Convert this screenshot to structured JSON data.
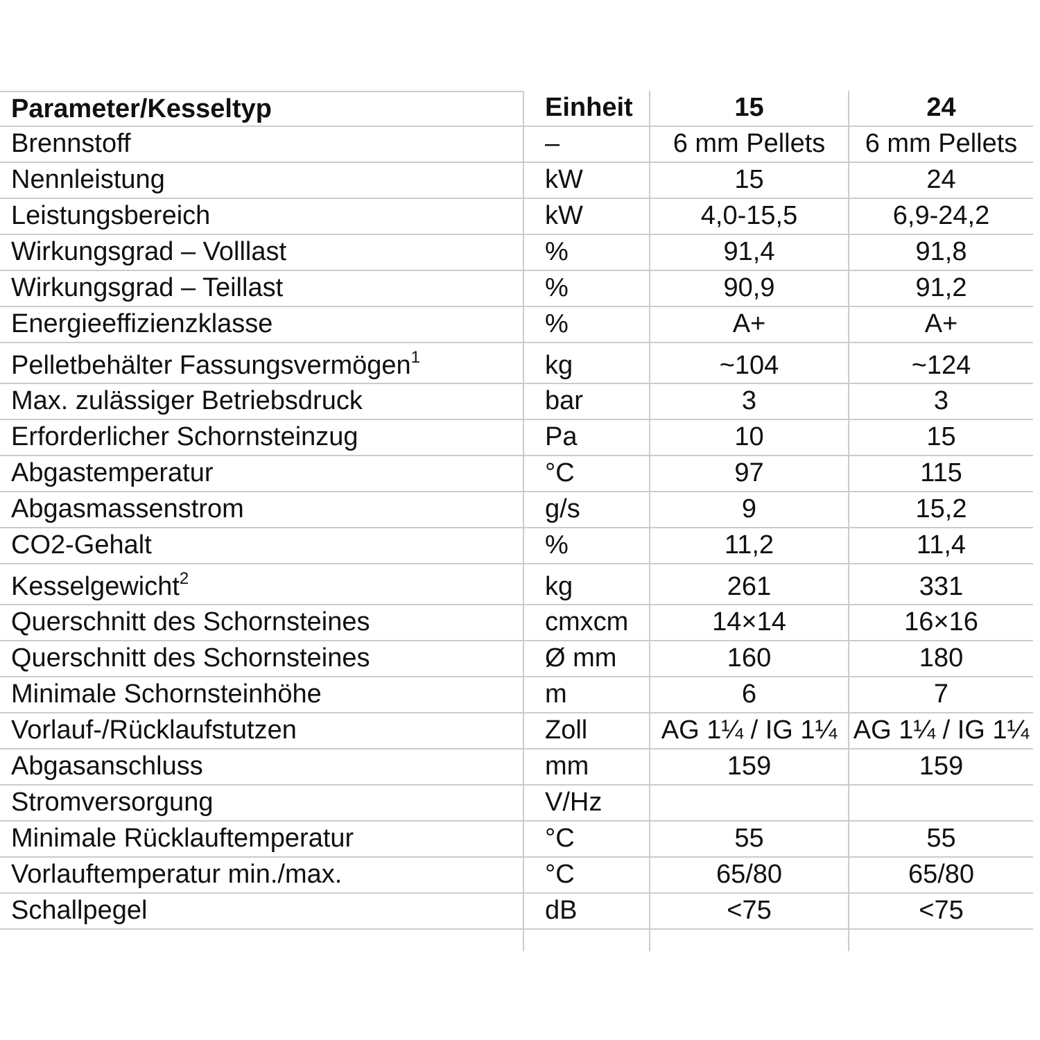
{
  "colors": {
    "grid": "#cbcbcb",
    "text": "#101010",
    "background": "#ffffff"
  },
  "table": {
    "header": {
      "parameter": "Parameter/Kesseltyp",
      "unit": "Einheit",
      "col15": "15",
      "col24": "24"
    },
    "rows": [
      {
        "parameter": "Brennstoff",
        "sup": "",
        "unit": "–",
        "v15": "6 mm Pellets",
        "v24": "6 mm Pellets"
      },
      {
        "parameter": "Nennleistung",
        "sup": "",
        "unit": "kW",
        "v15": "15",
        "v24": "24"
      },
      {
        "parameter": "Leistungsbereich",
        "sup": "",
        "unit": "kW",
        "v15": "4,0-15,5",
        "v24": "6,9-24,2"
      },
      {
        "parameter": "Wirkungsgrad – Volllast",
        "sup": "",
        "unit": "%",
        "v15": "91,4",
        "v24": "91,8"
      },
      {
        "parameter": "Wirkungsgrad – Teillast",
        "sup": "",
        "unit": "%",
        "v15": "90,9",
        "v24": "91,2"
      },
      {
        "parameter": "Energieeffizienzklasse",
        "sup": "",
        "unit": "%",
        "v15": "A+",
        "v24": "A+"
      },
      {
        "parameter": "Pelletbehälter Fassungsvermögen",
        "sup": "1",
        "unit": "kg",
        "v15": "~104",
        "v24": "~124"
      },
      {
        "parameter": "Max. zulässiger Betriebsdruck",
        "sup": "",
        "unit": "bar",
        "v15": "3",
        "v24": "3"
      },
      {
        "parameter": "Erforderlicher Schornsteinzug",
        "sup": "",
        "unit": "Pa",
        "v15": "10",
        "v24": "15"
      },
      {
        "parameter": "Abgastemperatur",
        "sup": "",
        "unit": "°C",
        "v15": "97",
        "v24": "115"
      },
      {
        "parameter": "Abgasmassenstrom",
        "sup": "",
        "unit": "g/s",
        "v15": "9",
        "v24": "15,2"
      },
      {
        "parameter": "CO2-Gehalt",
        "sup": "",
        "unit": "%",
        "v15": "11,2",
        "v24": "11,4"
      },
      {
        "parameter": "Kesselgewicht",
        "sup": "2",
        "unit": "kg",
        "v15": "261",
        "v24": "331"
      },
      {
        "parameter": "Querschnitt des Schornsteines",
        "sup": "",
        "unit": "cmxcm",
        "v15": "14×14",
        "v24": "16×16"
      },
      {
        "parameter": "Querschnitt des Schornsteines",
        "sup": "",
        "unit": "Ø mm",
        "v15": "160",
        "v24": "180"
      },
      {
        "parameter": "Minimale Schornsteinhöhe",
        "sup": "",
        "unit": "m",
        "v15": "6",
        "v24": "7"
      },
      {
        "parameter": "Vorlauf-/Rücklaufstutzen",
        "sup": "",
        "unit": "Zoll",
        "v15": "AG 1¼ / IG 1¼",
        "v24": "AG 1¼ / IG 1¼"
      },
      {
        "parameter": "Abgasanschluss",
        "sup": "",
        "unit": "mm",
        "v15": "159",
        "v24": "159"
      },
      {
        "parameter": "Stromversorgung",
        "sup": "",
        "unit": "V/Hz",
        "v15": "",
        "v24": ""
      },
      {
        "parameter": "Minimale Rücklauftemperatur",
        "sup": "",
        "unit": "°C",
        "v15": "55",
        "v24": "55"
      },
      {
        "parameter": "Vorlauftemperatur min./max.",
        "sup": "",
        "unit": "°C",
        "v15": "65/80",
        "v24": "65/80"
      },
      {
        "parameter": "Schallpegel",
        "sup": "",
        "unit": "dB",
        "v15": "<75",
        "v24": "<75"
      }
    ]
  }
}
